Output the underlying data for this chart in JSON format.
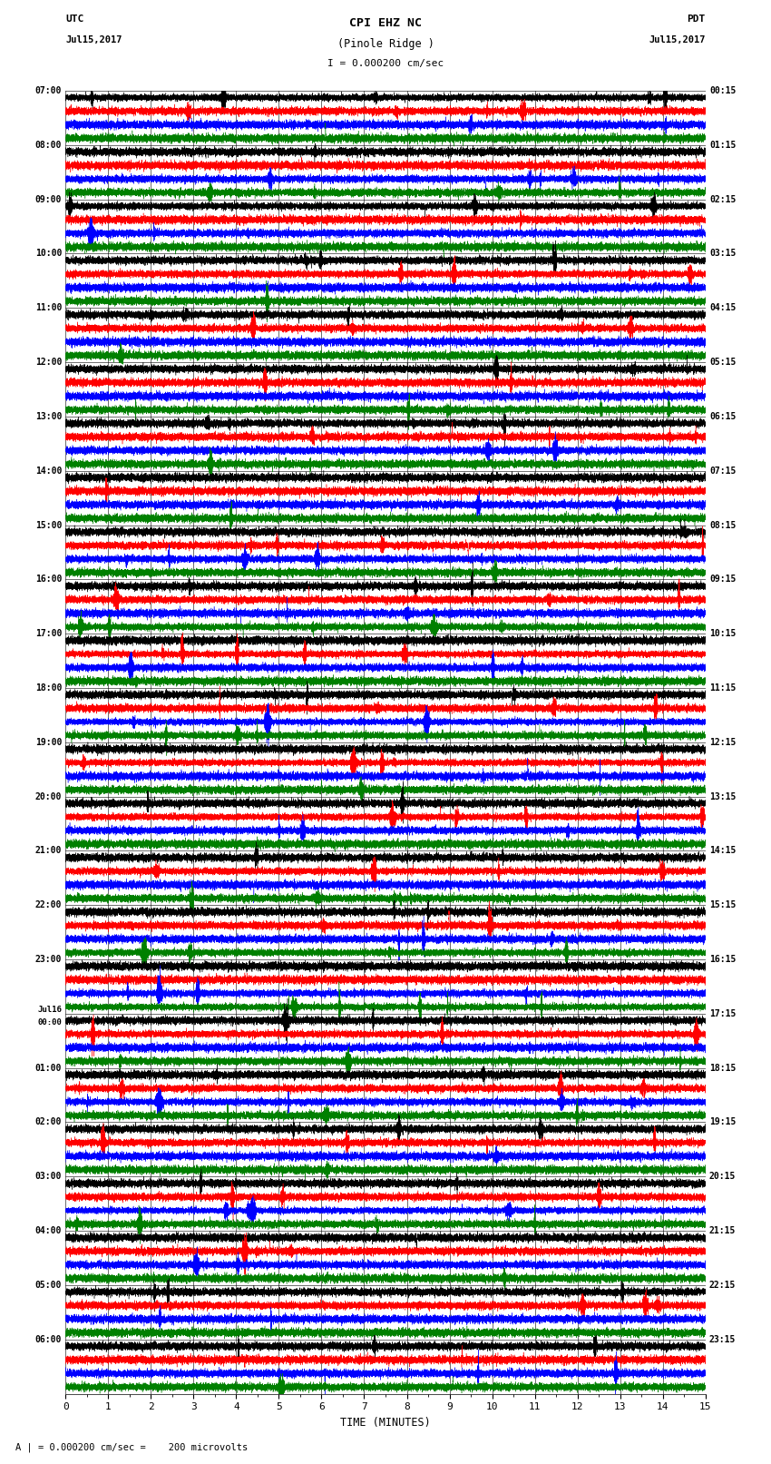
{
  "title_line1": "CPI EHZ NC",
  "title_line2": "(Pinole Ridge )",
  "scale_text": "I = 0.000200 cm/sec",
  "footer_text": "A | = 0.000200 cm/sec =    200 microvolts",
  "utc_label": "UTC",
  "utc_date": "Jul15,2017",
  "pdt_label": "PDT",
  "pdt_date": "Jul15,2017",
  "xlabel": "TIME (MINUTES)",
  "bg_color": "#ffffff",
  "trace_colors": [
    "black",
    "red",
    "blue",
    "green"
  ],
  "left_times_utc": [
    "07:00",
    "08:00",
    "09:00",
    "10:00",
    "11:00",
    "12:00",
    "13:00",
    "14:00",
    "15:00",
    "16:00",
    "17:00",
    "18:00",
    "19:00",
    "20:00",
    "21:00",
    "22:00",
    "23:00",
    "Jul16\n00:00",
    "01:00",
    "02:00",
    "03:00",
    "04:00",
    "05:00",
    "06:00"
  ],
  "right_times_pdt": [
    "00:15",
    "01:15",
    "02:15",
    "03:15",
    "04:15",
    "05:15",
    "06:15",
    "07:15",
    "08:15",
    "09:15",
    "10:15",
    "11:15",
    "12:15",
    "13:15",
    "14:15",
    "15:15",
    "16:15",
    "17:15",
    "18:15",
    "19:15",
    "20:15",
    "21:15",
    "22:15",
    "23:15"
  ],
  "num_rows": 24,
  "traces_per_row": 4,
  "minutes_per_row": 15,
  "noise_scale": 0.025,
  "fig_width": 8.5,
  "fig_height": 16.13
}
